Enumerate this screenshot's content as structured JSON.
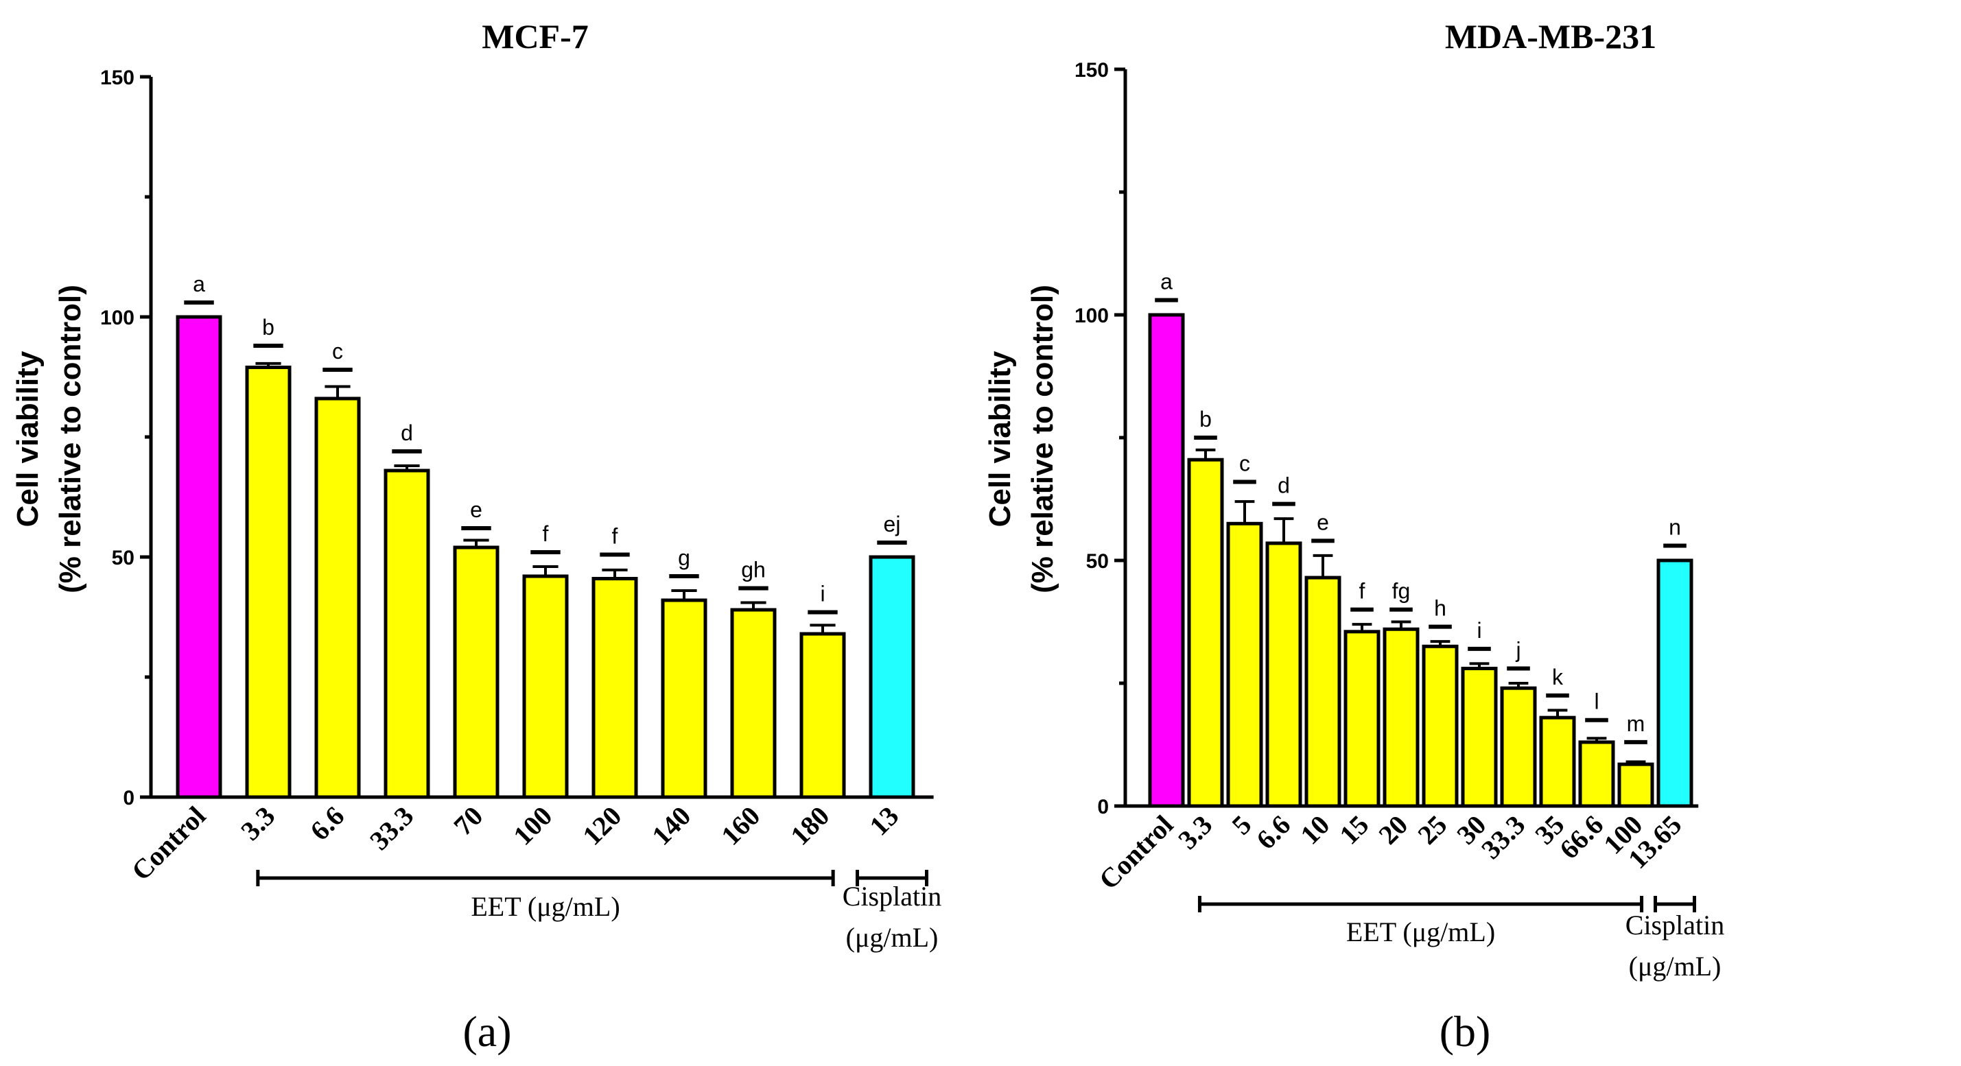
{
  "chart_data": [
    {
      "type": "bar",
      "panel_label": "(a)",
      "title": "MCF-7",
      "ylabel_line1": "Cell viability",
      "ylabel_line2": "(% relative to control)",
      "ylim": [
        0,
        150
      ],
      "yticks": [
        "0",
        "50",
        "100",
        "150"
      ],
      "categories": [
        "Control",
        "3.3",
        "6.6",
        "33.3",
        "70",
        "100",
        "120",
        "140",
        "160",
        "180",
        "13"
      ],
      "values": [
        100,
        89.5,
        83,
        68,
        52,
        46,
        45.5,
        41,
        39,
        34,
        50
      ],
      "errors": [
        0,
        0.8,
        2.5,
        1,
        1.5,
        2,
        1.8,
        2,
        1.5,
        1.8,
        0
      ],
      "significance": [
        "a",
        "b",
        "c",
        "d",
        "e",
        "f",
        "f",
        "g",
        "gh",
        "i",
        "ej"
      ],
      "sig_heights": [
        103,
        94,
        89,
        72,
        56,
        51,
        50.5,
        46,
        43.5,
        38.5,
        53
      ],
      "bar_colors": [
        "#ff00ff",
        "#ffff00",
        "#ffff00",
        "#ffff00",
        "#ffff00",
        "#ffff00",
        "#ffff00",
        "#ffff00",
        "#ffff00",
        "#ffff00",
        "#22ffff"
      ],
      "groups": [
        {
          "label": "EET (μg/mL)",
          "lines": [
            "EET (μg/mL)"
          ],
          "start_index": 1,
          "end_index": 9
        },
        {
          "label": "Cisplatin (μg/mL)",
          "lines": [
            "Cisplatin",
            "(μg/mL)"
          ],
          "start_index": 10,
          "end_index": 10
        }
      ]
    },
    {
      "type": "bar",
      "panel_label": "(b)",
      "title": "MDA-MB-231",
      "ylabel_line1": "Cell viability",
      "ylabel_line2": "(% relative to control)",
      "ylim": [
        0,
        150
      ],
      "yticks": [
        "0",
        "50",
        "100",
        "150"
      ],
      "categories": [
        "Control",
        "3.3",
        "5",
        "6.6",
        "10",
        "15",
        "20",
        "25",
        "30",
        "33.3",
        "35",
        "66.6",
        "100",
        "13.65"
      ],
      "values": [
        100,
        70.5,
        57.5,
        53.5,
        46.5,
        35.5,
        36,
        32.5,
        28,
        24,
        18,
        13,
        8.5,
        50
      ],
      "errors": [
        0,
        2,
        4.5,
        5,
        4.5,
        1.5,
        1.5,
        1,
        1,
        1,
        1.5,
        0.8,
        0.5,
        0
      ],
      "significance": [
        "a",
        "b",
        "c",
        "d",
        "e",
        "f",
        "fg",
        "h",
        "i",
        "j",
        "k",
        "l",
        "m",
        "n"
      ],
      "sig_heights": [
        103,
        75,
        66,
        61.5,
        54,
        40,
        40,
        36.5,
        32,
        28,
        22.5,
        17.5,
        13,
        53
      ],
      "bar_colors": [
        "#ff00ff",
        "#ffff00",
        "#ffff00",
        "#ffff00",
        "#ffff00",
        "#ffff00",
        "#ffff00",
        "#ffff00",
        "#ffff00",
        "#ffff00",
        "#ffff00",
        "#ffff00",
        "#ffff00",
        "#22ffff"
      ],
      "groups": [
        {
          "label": "EET (μg/mL)",
          "lines": [
            "EET (μg/mL)"
          ],
          "start_index": 1,
          "end_index": 12
        },
        {
          "label": "Cisplatin (μg/mL)",
          "lines": [
            "Cisplatin",
            "(μg/mL)"
          ],
          "start_index": 13,
          "end_index": 13
        }
      ]
    }
  ]
}
